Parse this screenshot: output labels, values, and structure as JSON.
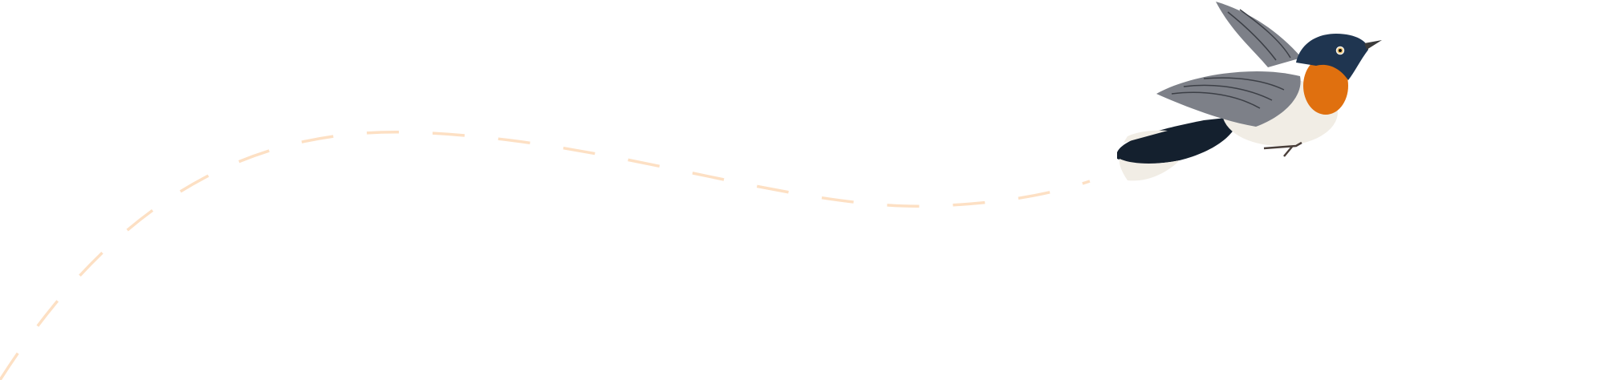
{
  "illustration": {
    "subject": "bird-icon",
    "colors": {
      "path_dash": "#fde0c4",
      "bird_head": "#1f3550",
      "bird_throat": "#e0700f",
      "bird_belly": "#f1ede5",
      "bird_wing": "#7d8088",
      "bird_tail": "#14202e",
      "background": "#ffffff"
    }
  }
}
